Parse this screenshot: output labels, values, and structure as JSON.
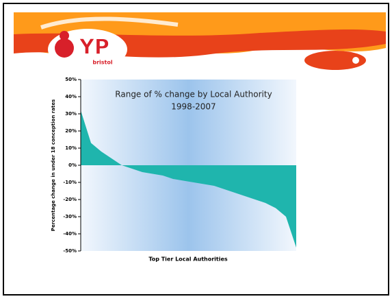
{
  "logo": {
    "text": "YP",
    "sub": "bristol"
  },
  "chart_data": {
    "type": "area",
    "title": "Range of % change by Local Authority",
    "subtitle": "1998-2007",
    "x_label": "Top Tier Local Authorities",
    "y_label": "Percentage change in under 18 conception rates",
    "values": [
      32,
      13,
      8,
      4,
      0,
      -2,
      -4,
      -5,
      -6,
      -8,
      -9,
      -10,
      -11,
      -12,
      -14,
      -16,
      -18,
      -20,
      -22,
      -25,
      -30,
      -48
    ],
    "color": "#1fb5ad",
    "ylim": [
      -50,
      50
    ],
    "yticks": [
      {
        "value": 50,
        "label": "50%"
      },
      {
        "value": 40,
        "label": "40%"
      },
      {
        "value": 30,
        "label": "30%"
      },
      {
        "value": 20,
        "label": "20%"
      },
      {
        "value": 10,
        "label": "10%"
      },
      {
        "value": 0,
        "label": "0%"
      },
      {
        "value": -10,
        "label": "-10%"
      },
      {
        "value": -20,
        "label": "-20%"
      },
      {
        "value": -30,
        "label": "-30%"
      },
      {
        "value": -40,
        "label": "-40%"
      },
      {
        "value": -50,
        "label": "-50%"
      }
    ]
  }
}
